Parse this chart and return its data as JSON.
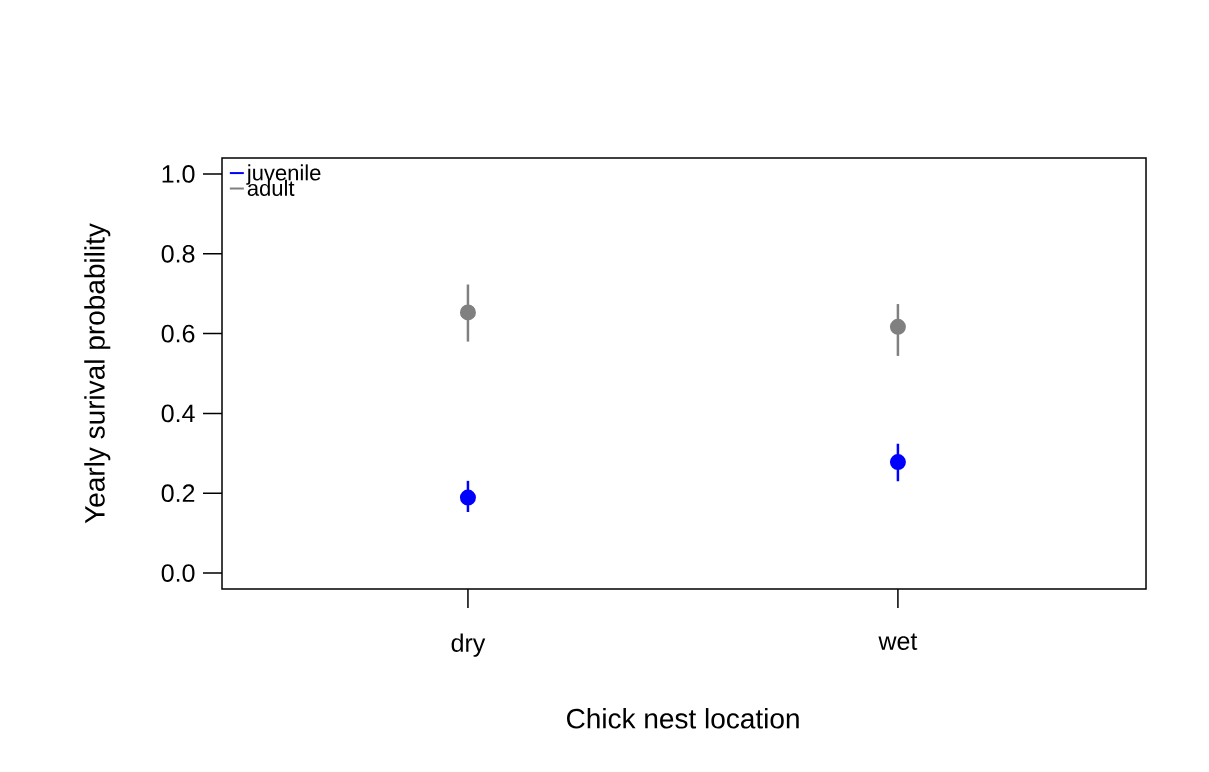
{
  "chart_data": {
    "type": "scatter",
    "xlabel": "Chick nest location",
    "ylabel": "Yearly surival probability",
    "categories": [
      "dry",
      "wet"
    ],
    "series": [
      {
        "name": "juvenile",
        "color": "#0000ff",
        "values": [
          0.189,
          0.278
        ],
        "errors": [
          [
            0.153,
            0.231
          ],
          [
            0.23,
            0.324
          ]
        ]
      },
      {
        "name": "adult",
        "color": "#808080",
        "values": [
          0.653,
          0.617
        ],
        "errors": [
          [
            0.58,
            0.723
          ],
          [
            0.544,
            0.674
          ]
        ]
      }
    ],
    "ylim": [
      -0.04,
      1.04
    ],
    "yticks": [
      {
        "value": 0,
        "label": "0.0"
      },
      0.2,
      0.4,
      0.6,
      0.8,
      {
        "value": 1,
        "label": "1.0"
      }
    ],
    "legend": "top left",
    "marker": "circle"
  }
}
